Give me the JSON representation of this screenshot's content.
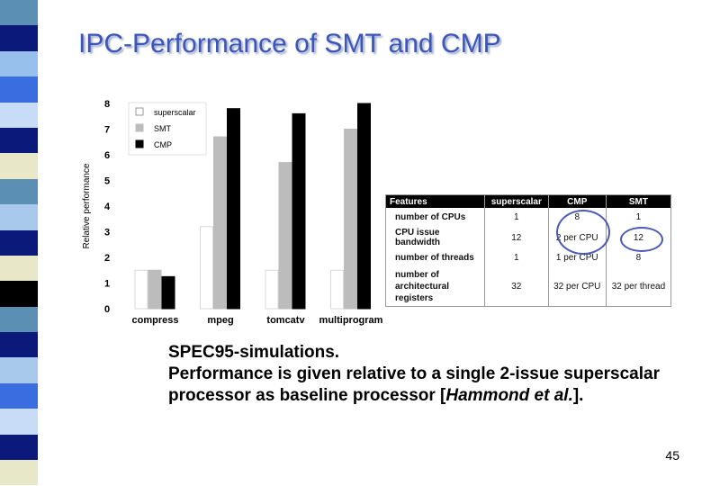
{
  "slide": {
    "title": "IPC-Performance of SMT and CMP",
    "caption_line1": "SPEC95-simulations.",
    "caption_line2": "Performance is given relative to a single 2-issue superscalar processor as baseline processor [",
    "caption_cite": "Hammond et al.",
    "caption_end": "].",
    "page_number": "45"
  },
  "colors": {
    "accent": "#3b56b8",
    "stripe": [
      "#5b8fb3",
      "#0b1a7a",
      "#98c0ec",
      "#3a6de0",
      "#c8dcf8",
      "#0b1a7a",
      "#e8e8c8",
      "#5b8fb3",
      "#a8c8ec",
      "#0b1a7a",
      "#e8e8c8",
      "#000000",
      "#5b8fb3",
      "#0b1a7a",
      "#a8c8ec",
      "#3a6de0",
      "#c8dcf8",
      "#0b1a7a",
      "#e8e8c8"
    ]
  },
  "chart_data": {
    "type": "bar",
    "categories": [
      "compress",
      "mpeg",
      "tomcatv",
      "multiprogram"
    ],
    "series": [
      {
        "name": "superscalar",
        "color": "#ffffff",
        "values": [
          1.5,
          3.2,
          1.5,
          1.5
        ]
      },
      {
        "name": "SMT",
        "color": "#bcbcbc",
        "values": [
          1.5,
          6.7,
          5.7,
          7.0
        ]
      },
      {
        "name": "CMP",
        "color": "#000000",
        "values": [
          1.25,
          7.8,
          7.6,
          8.0
        ]
      }
    ],
    "ylabel": "Relative performance",
    "ylim": [
      0,
      8
    ],
    "yticks": [
      "0",
      "1",
      "2",
      "3",
      "4",
      "5",
      "6",
      "7",
      "8"
    ],
    "legend": "top-left"
  },
  "features_table": {
    "headers": [
      "Features",
      "superscalar",
      "CMP",
      "SMT"
    ],
    "rows": [
      [
        "number of CPUs",
        "1",
        "8",
        "1"
      ],
      [
        "CPU issue bandwidth",
        "12",
        "2 per CPU",
        "12"
      ],
      [
        "number of threads",
        "1",
        "1 per CPU",
        "8"
      ],
      [
        "number of architectural registers",
        "32",
        "32 per CPU",
        "32 per thread"
      ]
    ]
  }
}
